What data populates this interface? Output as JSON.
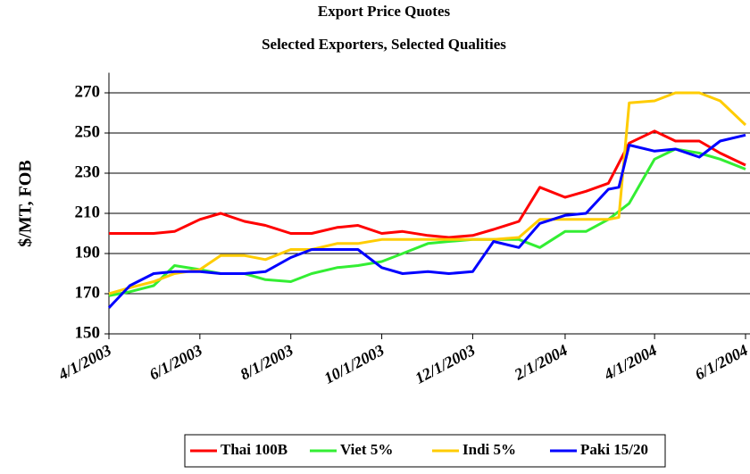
{
  "chart_data": {
    "type": "line",
    "title": "Export Price Quotes",
    "subtitle": "Selected Exporters, Selected Qualities",
    "y_label": "$/MT, FOB",
    "x": [
      "4/1/2003",
      "4/15/2003",
      "5/1/2003",
      "5/15/2003",
      "6/1/2003",
      "6/15/2003",
      "7/1/2003",
      "7/15/2003",
      "8/1/2003",
      "8/15/2003",
      "9/1/2003",
      "9/15/2003",
      "10/1/2003",
      "10/15/2003",
      "11/1/2003",
      "11/15/2003",
      "12/1/2003",
      "12/15/2003",
      "1/1/2004",
      "1/15/2004",
      "2/1/2004",
      "2/15/2004",
      "3/1/2004",
      "3/8/2004",
      "3/15/2004",
      "4/1/2004",
      "4/15/2004",
      "5/1/2004",
      "5/15/2004",
      "6/1/2004"
    ],
    "series": [
      {
        "name": "Thai 100B",
        "color": "#ff0000",
        "values": [
          200,
          200,
          200,
          201,
          207,
          210,
          206,
          204,
          200,
          200,
          203,
          204,
          200,
          201,
          199,
          198,
          199,
          202,
          206,
          223,
          218,
          221,
          225,
          235,
          245,
          251,
          246,
          246,
          240,
          234
        ]
      },
      {
        "name": "Viet 5%",
        "color": "#33ee33",
        "values": [
          169,
          171,
          174,
          184,
          182,
          180,
          180,
          177,
          176,
          180,
          183,
          184,
          186,
          190,
          195,
          196,
          197,
          197,
          197,
          193,
          201,
          201,
          207,
          211,
          215,
          237,
          242,
          240,
          237,
          232
        ]
      },
      {
        "name": "Indi 5%",
        "color": "#ffcc00",
        "values": [
          170,
          173,
          176,
          180,
          182,
          189,
          189,
          187,
          192,
          192,
          195,
          195,
          197,
          197,
          197,
          197,
          197,
          197,
          198,
          207,
          207,
          207,
          207,
          208,
          265,
          266,
          270,
          270,
          266,
          254
        ]
      },
      {
        "name": "Paki 15/20",
        "color": "#0000ff",
        "values": [
          163,
          174,
          180,
          181,
          181,
          180,
          180,
          181,
          188,
          192,
          192,
          192,
          183,
          180,
          181,
          180,
          181,
          196,
          193,
          205,
          209,
          210,
          222,
          223,
          244,
          241,
          242,
          238,
          246,
          249
        ]
      }
    ],
    "xlim": [
      "4/1/2003",
      "6/4/2004"
    ],
    "xticks": [
      "4/1/2003",
      "6/1/2003",
      "8/1/2003",
      "10/1/2003",
      "12/1/2003",
      "2/1/2004",
      "4/1/2004",
      "6/1/2004"
    ],
    "ylim": [
      150,
      280
    ],
    "yticks": [
      150,
      170,
      190,
      210,
      230,
      250,
      270
    ],
    "grid": true,
    "legend": "bottom"
  }
}
